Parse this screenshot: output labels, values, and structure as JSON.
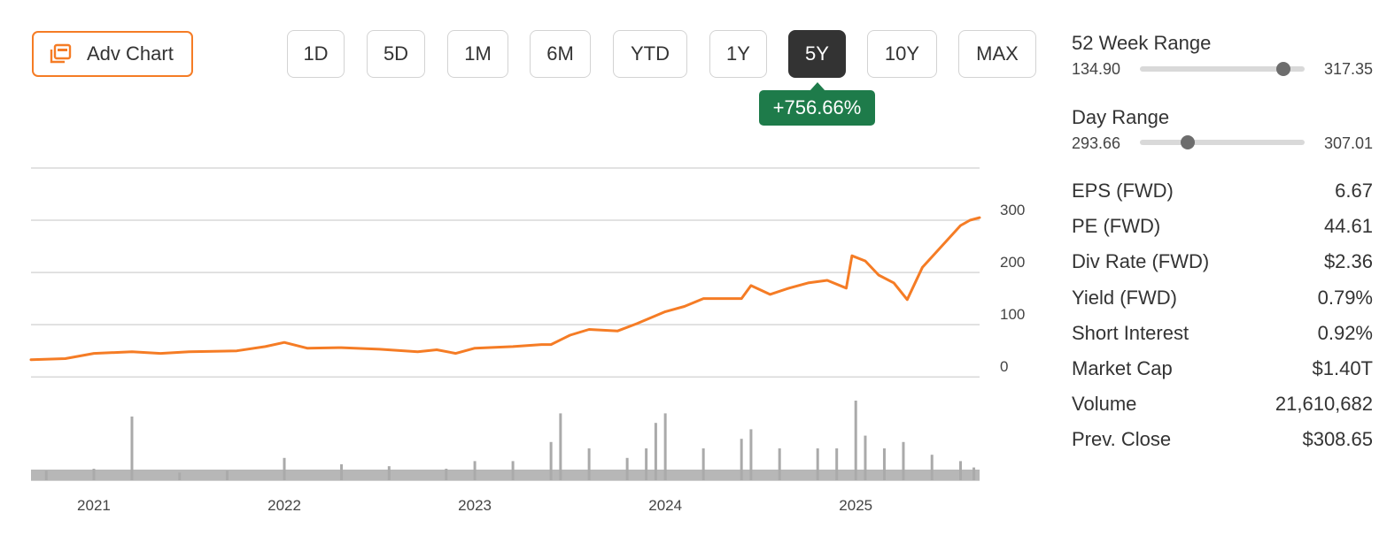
{
  "adv_chart": {
    "label": "Adv Chart",
    "icon": "chart-window-icon"
  },
  "periods": [
    {
      "label": "1D",
      "active": false
    },
    {
      "label": "5D",
      "active": false
    },
    {
      "label": "1M",
      "active": false
    },
    {
      "label": "6M",
      "active": false
    },
    {
      "label": "YTD",
      "active": false
    },
    {
      "label": "1Y",
      "active": false
    },
    {
      "label": "5Y",
      "active": true
    },
    {
      "label": "10Y",
      "active": false
    },
    {
      "label": "MAX",
      "active": false
    }
  ],
  "change_badge": "+756.66%",
  "colors": {
    "accent": "#f57c25",
    "price_line": "#f57c25",
    "positive": "#1e7b4a",
    "volume": "#aaaaaa",
    "active_period": "#333333"
  },
  "chart_data": {
    "type": "line",
    "x_tick_labels": [
      "2021",
      "2022",
      "2023",
      "2024",
      "2025"
    ],
    "x_tick_values": [
      2021,
      2022,
      2023,
      2024,
      2025
    ],
    "xlim": [
      2020.67,
      2025.65
    ],
    "y_tick_labels": [
      "0",
      "100",
      "200",
      "300"
    ],
    "y_tick_values": [
      0,
      100,
      200,
      300
    ],
    "ylim": [
      -20,
      400
    ],
    "grid": true,
    "series": [
      {
        "values_x": [
          2020.67,
          2020.85,
          2021.0,
          2021.2,
          2021.35,
          2021.5,
          2021.75,
          2021.9,
          2022.0,
          2022.12,
          2022.3,
          2022.5,
          2022.7,
          2022.8,
          2022.9,
          2023.0,
          2023.2,
          2023.35,
          2023.4,
          2023.5,
          2023.6,
          2023.75,
          2023.85,
          2024.0,
          2024.1,
          2024.2,
          2024.4,
          2024.45,
          2024.55,
          2024.65,
          2024.75,
          2024.85,
          2024.95,
          2024.98,
          2025.05,
          2025.12,
          2025.2,
          2025.27,
          2025.35,
          2025.45,
          2025.55,
          2025.6,
          2025.65
        ],
        "values_y": [
          33,
          35,
          45,
          48,
          45,
          48,
          50,
          58,
          66,
          55,
          56,
          53,
          48,
          52,
          45,
          55,
          58,
          62,
          62,
          80,
          91,
          88,
          102,
          125,
          135,
          150,
          150,
          175,
          158,
          170,
          180,
          185,
          170,
          232,
          222,
          195,
          180,
          148,
          210,
          250,
          290,
          300,
          305
        ]
      }
    ],
    "volume": {
      "bar_color": "#aaaaaa",
      "values_x": [
        2020.75,
        2021.0,
        2021.2,
        2021.45,
        2021.7,
        2022.0,
        2022.3,
        2022.55,
        2022.85,
        2023.0,
        2023.2,
        2023.4,
        2023.45,
        2023.6,
        2023.8,
        2023.9,
        2023.95,
        2024.0,
        2024.2,
        2024.4,
        2024.45,
        2024.6,
        2024.8,
        2024.9,
        2025.0,
        2025.05,
        2025.15,
        2025.25,
        2025.4,
        2025.55,
        2025.62
      ],
      "values": [
        0.15,
        0.18,
        1.0,
        0.12,
        0.15,
        0.35,
        0.25,
        0.22,
        0.18,
        0.3,
        0.3,
        0.6,
        1.05,
        0.5,
        0.35,
        0.5,
        0.9,
        1.05,
        0.5,
        0.65,
        0.8,
        0.5,
        0.5,
        0.5,
        1.25,
        0.7,
        0.5,
        0.6,
        0.4,
        0.3,
        0.2
      ]
    }
  },
  "ranges": {
    "week52": {
      "title": "52 Week Range",
      "low": "134.90",
      "high": "317.35",
      "position": 0.87
    },
    "day": {
      "title": "Day Range",
      "low": "293.66",
      "high": "307.01",
      "position": 0.29
    }
  },
  "stats": [
    {
      "label": "EPS (FWD)",
      "value": "6.67"
    },
    {
      "label": "PE (FWD)",
      "value": "44.61"
    },
    {
      "label": "Div Rate (FWD)",
      "value": "$2.36"
    },
    {
      "label": "Yield (FWD)",
      "value": "0.79%"
    },
    {
      "label": "Short Interest",
      "value": "0.92%"
    },
    {
      "label": "Market Cap",
      "value": "$1.40T"
    },
    {
      "label": "Volume",
      "value": "21,610,682"
    },
    {
      "label": "Prev. Close",
      "value": "$308.65"
    }
  ]
}
